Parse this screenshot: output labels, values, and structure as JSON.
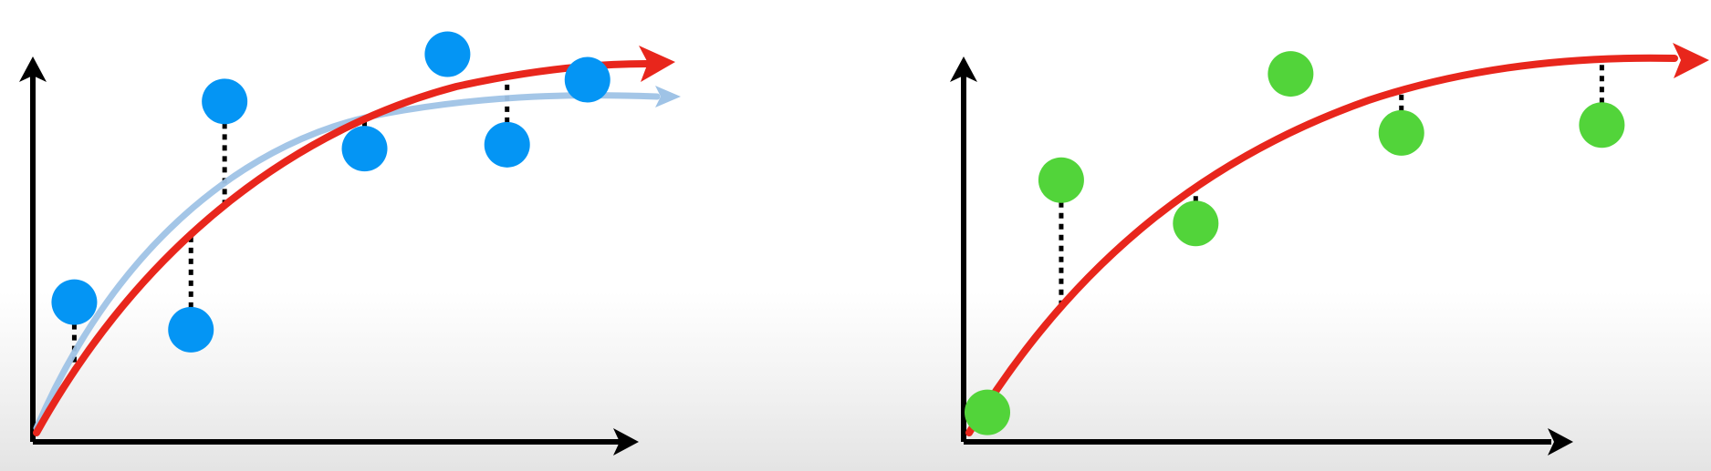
{
  "colors": {
    "axis": "#000000",
    "fit_curve": "#e8261c",
    "prior_curve": "#9fc3e6",
    "training_points": "#0495f4",
    "testing_points": "#52d43a",
    "residual": "#000000"
  },
  "panels": [
    {
      "id": "left",
      "points": "training",
      "point_color": "#0495f4",
      "has_prior_curve": true,
      "data": [
        {
          "x": 0.08,
          "y": 0.355,
          "residual": true
        },
        {
          "x": 0.305,
          "y": 0.285,
          "residual": true
        },
        {
          "x": 0.37,
          "y": 0.865,
          "residual": true
        },
        {
          "x": 0.64,
          "y": 0.745,
          "residual": true
        },
        {
          "x": 0.8,
          "y": 0.985,
          "residual": false
        },
        {
          "x": 0.915,
          "y": 0.755,
          "residual": true
        },
        {
          "x": 1.07,
          "y": 0.92,
          "residual": false
        }
      ]
    },
    {
      "id": "right",
      "points": "testing",
      "point_color": "#52d43a",
      "has_prior_curve": false,
      "data": [
        {
          "x": 0.045,
          "y": 0.075,
          "residual": false
        },
        {
          "x": 0.185,
          "y": 0.665,
          "residual": true
        },
        {
          "x": 0.44,
          "y": 0.555,
          "residual": true
        },
        {
          "x": 0.62,
          "y": 0.935,
          "residual": false
        },
        {
          "x": 0.83,
          "y": 0.785,
          "residual": true
        },
        {
          "x": 1.21,
          "y": 0.805,
          "residual": true
        }
      ]
    }
  ]
}
